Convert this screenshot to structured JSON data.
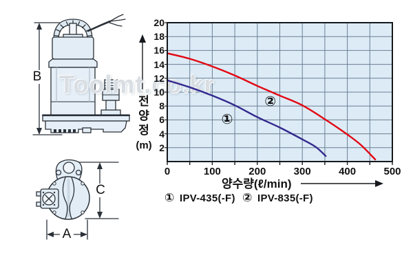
{
  "watermark": "Toolmt.co.kr",
  "diagram": {
    "dim_b": "B",
    "dim_c": "C",
    "dim_a": "A"
  },
  "chart_data": {
    "type": "line",
    "title": "",
    "xlabel": "양수량(ℓ/min)",
    "ylabel": "전양정(m)",
    "ylabel_chars": [
      "전",
      "양",
      "정"
    ],
    "ylabel_unit": "(m)",
    "xlim": [
      0,
      500
    ],
    "ylim": [
      0,
      20
    ],
    "x_ticks": [
      0,
      100,
      200,
      300,
      400,
      500
    ],
    "y_ticks": [
      2,
      4,
      6,
      8,
      10,
      12,
      14,
      16,
      18,
      20
    ],
    "minor_x_step": 50,
    "minor_y_step": 2,
    "grid": true,
    "legend_position": "below",
    "plot_bg": "#dcebf5",
    "grid_color": "#6b7e95",
    "border_color": "#15181c",
    "series": [
      {
        "marker": "①",
        "name": "IPV-435(-F)",
        "color": "#32288f",
        "x": [
          0,
          50,
          100,
          150,
          200,
          250,
          300,
          330,
          352
        ],
        "y": [
          11.7,
          10.7,
          9.5,
          8.1,
          6.4,
          4.9,
          3.2,
          2.1,
          0.8
        ],
        "label_pos": {
          "x": 133,
          "y": 6.0
        }
      },
      {
        "marker": "②",
        "name": "IPV-835(-F)",
        "color": "#e30613",
        "x": [
          0,
          50,
          100,
          150,
          200,
          250,
          300,
          350,
          400,
          430,
          462
        ],
        "y": [
          15.6,
          14.8,
          13.7,
          12.4,
          10.9,
          9.5,
          8.1,
          6.1,
          3.9,
          2.4,
          0.3
        ],
        "label_pos": {
          "x": 229,
          "y": 8.6
        }
      }
    ],
    "legend": [
      {
        "marker": "①",
        "label": "IPV-435(-F)"
      },
      {
        "marker": "②",
        "label": "IPV-835(-F)"
      }
    ]
  }
}
